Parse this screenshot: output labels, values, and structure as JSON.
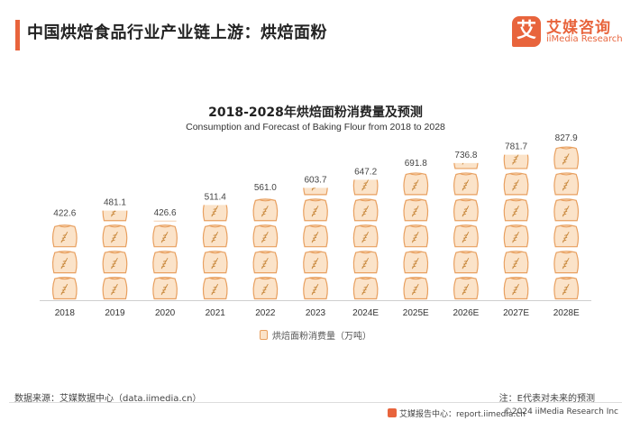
{
  "header": {
    "title": "中国烘焙食品行业产业链上游：烘焙面粉"
  },
  "logo": {
    "badge": "艾",
    "name": "艾媒咨询",
    "subtitle": "iiMedia Research"
  },
  "colors": {
    "accent": "#e8643c",
    "bag_fill": "#fbe3c9",
    "bag_stroke": "#e8a060",
    "bag_mark": "#c8883c"
  },
  "chart_data": {
    "type": "bar",
    "title": "2018-2028年烘焙面粉消费量及预测",
    "subtitle": "Consumption and Forecast  of Baking Flour  from 2018 to 2028",
    "categories": [
      "2018",
      "2019",
      "2020",
      "2021",
      "2022",
      "2023",
      "2024E",
      "2025E",
      "2026E",
      "2027E",
      "2028E"
    ],
    "values": [
      422.6,
      481.1,
      426.6,
      511.4,
      561.0,
      603.7,
      647.2,
      691.8,
      736.8,
      781.7,
      827.9
    ],
    "value_labels": [
      "422.6",
      "481.1",
      "426.6",
      "511.4",
      "561.0",
      "603.7",
      "647.2",
      "691.8",
      "736.8",
      "781.7",
      "827.9"
    ],
    "series_name": "烘焙面粉消费量（万吨）",
    "ylim": [
      0,
      850
    ],
    "xlabel": "",
    "ylabel": "",
    "legend_position": "bottom"
  },
  "footer": {
    "source": "数据来源：艾媒数据中心（data.iimedia.cn）",
    "note": "注：E代表对未来的预测",
    "report": "艾媒报告中心：report.iimedia.cn",
    "copyright": "©2024 iiMedia Research  Inc"
  }
}
